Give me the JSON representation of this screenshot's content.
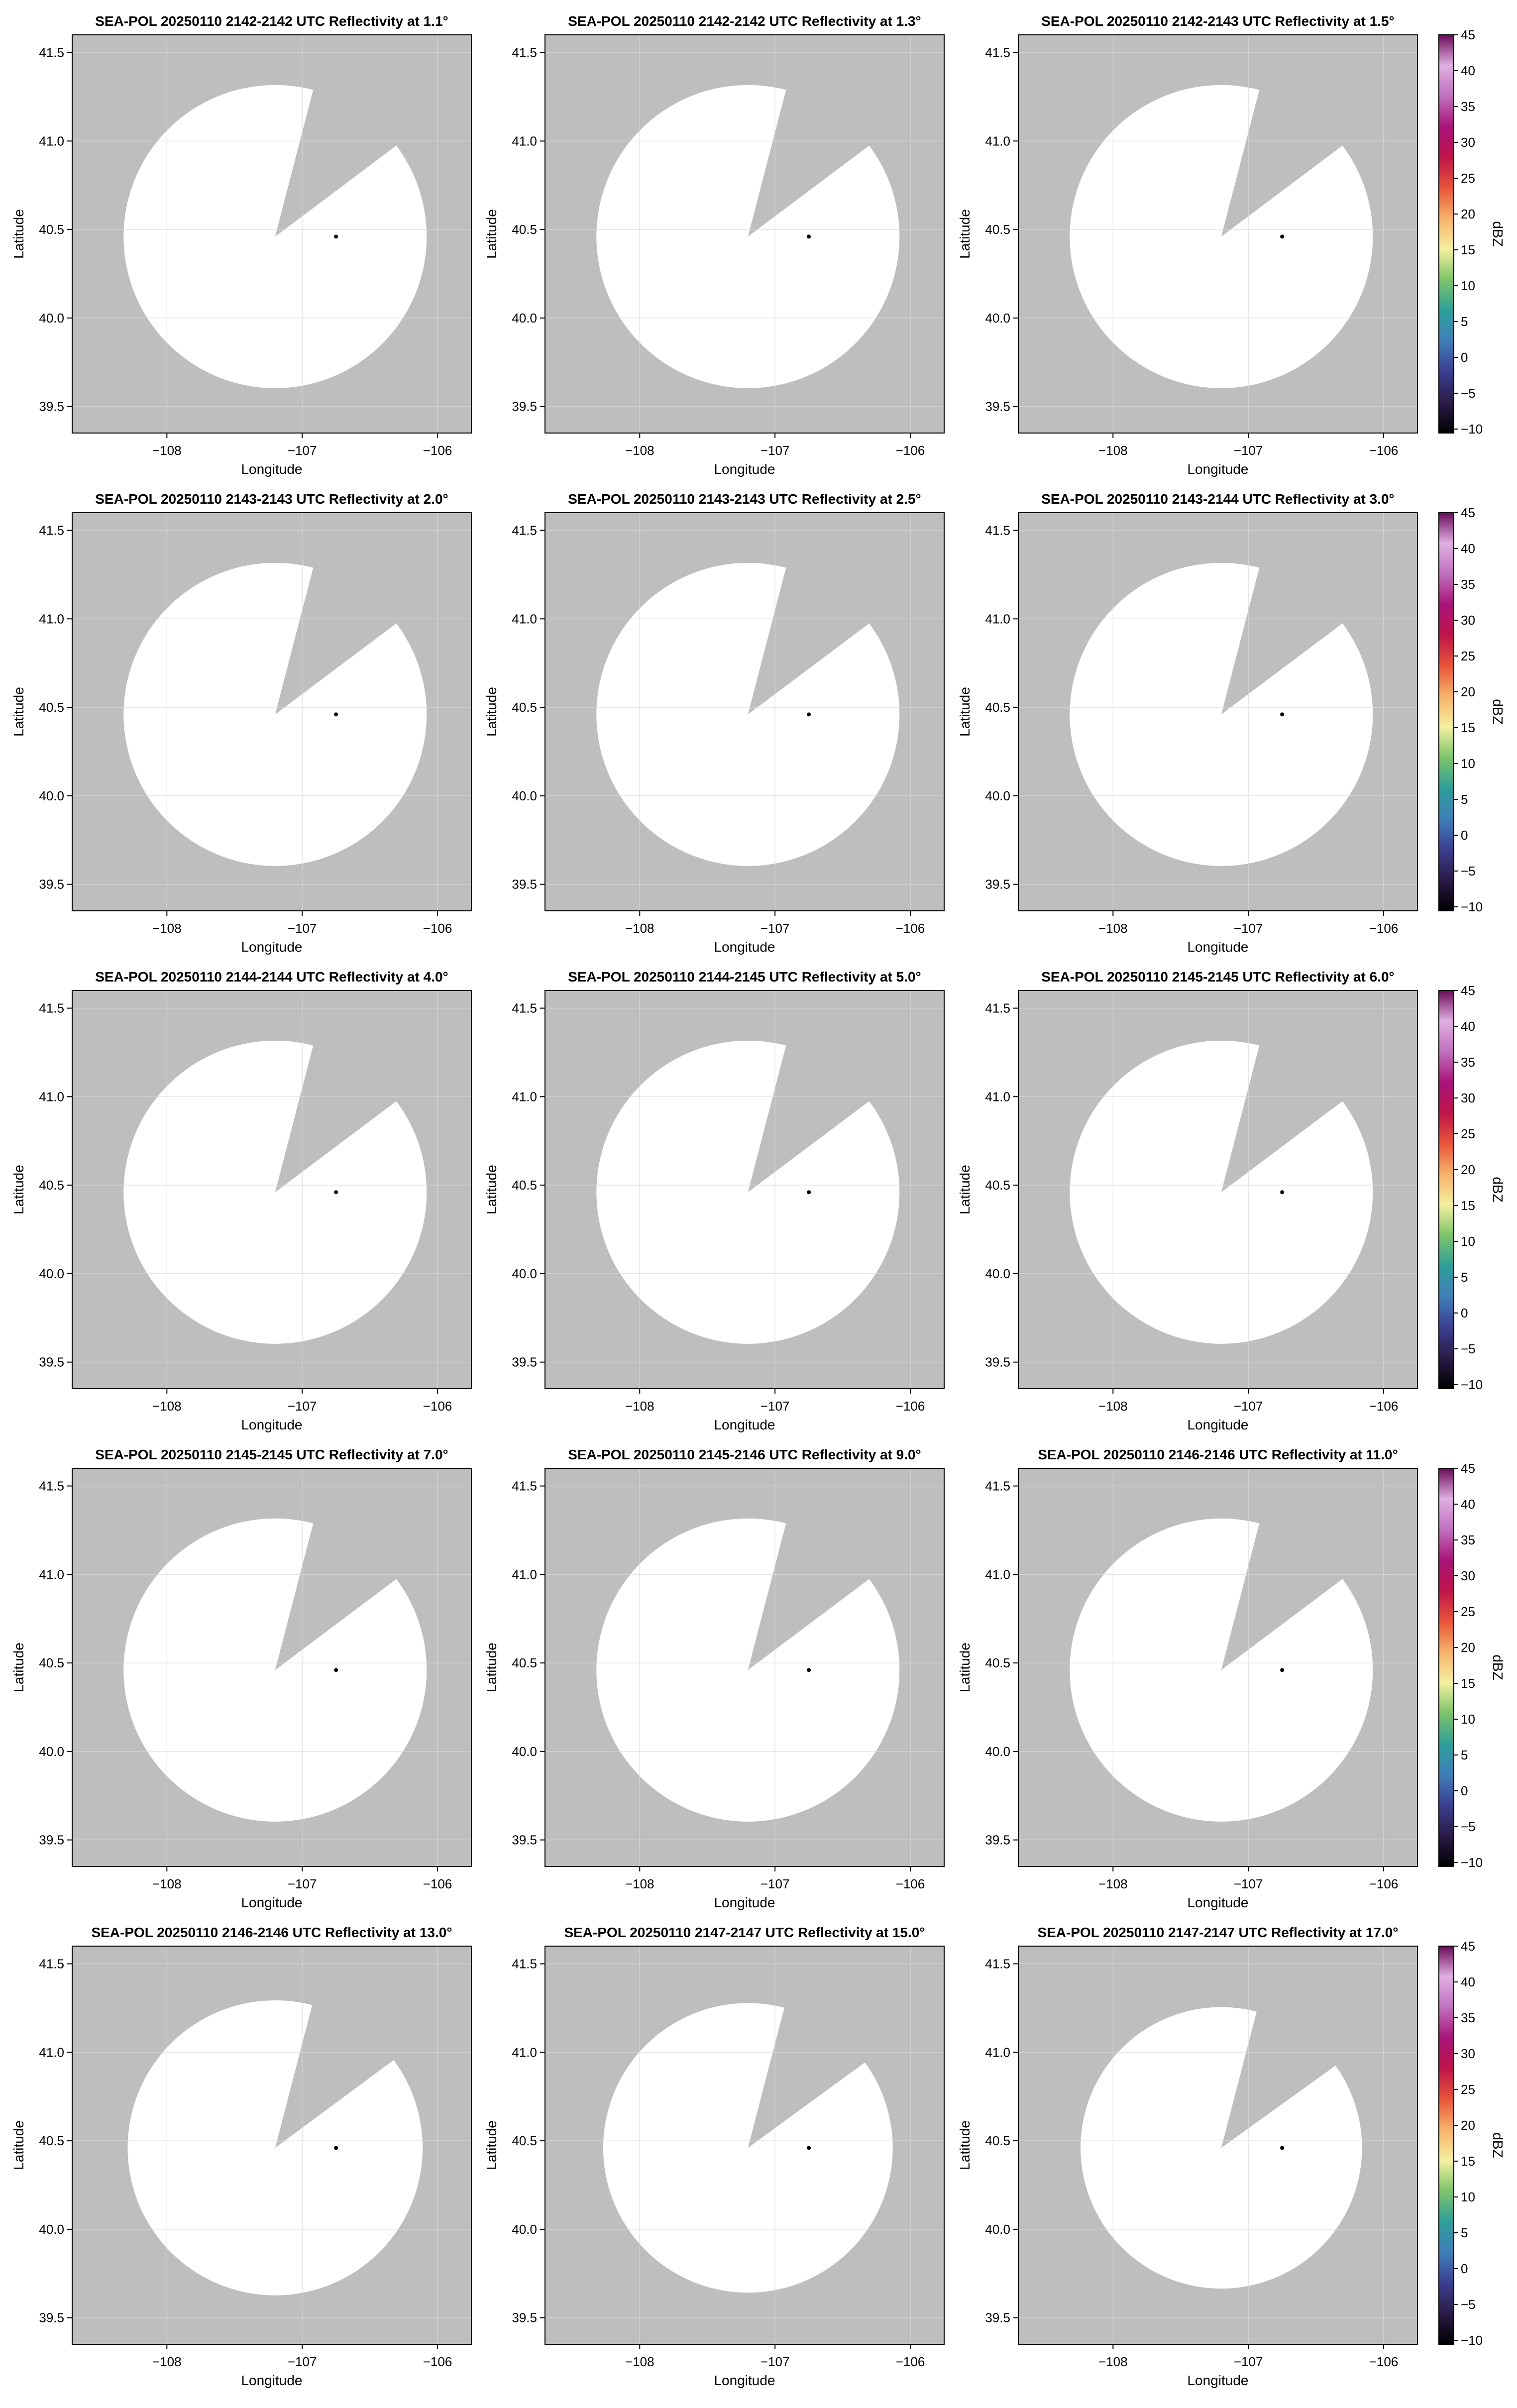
{
  "colors": {
    "no_data_background": "#bebebe",
    "coverage_fill": "#ffffff",
    "grid": "#d9d9d9",
    "radar_site_marker": "#000000",
    "axes_frame": "#000000"
  },
  "colormap": {
    "name": "reflectivity",
    "stops": [
      "#000000",
      "#2b1b48",
      "#3b3f8f",
      "#3f7fb8",
      "#2e9f9a",
      "#7cc46a",
      "#f4f0a0",
      "#f7b36a",
      "#e8553a",
      "#c0144a",
      "#a8147a",
      "#c070c0",
      "#e0b0e0",
      "#6a0a5a"
    ]
  },
  "chart_data": [
    {
      "type": "radar_ppi",
      "title": "SEA-POL 20250110 2142-2142 UTC Reflectivity at 1.1°",
      "xlabel": "Longitude",
      "ylabel": "Latitude",
      "xlim": [
        -108.7,
        -105.75
      ],
      "ylim": [
        39.35,
        41.6
      ],
      "xticks": [
        "−108",
        "−107",
        "−106"
      ],
      "yticks": [
        "39.5",
        "40.0",
        "40.5",
        "41.0",
        "41.5"
      ],
      "radar_site": {
        "lon": -106.75,
        "lat": 40.46
      },
      "coverage": {
        "center_lon": -107.2,
        "center_lat": 40.46,
        "radius_deg": 1.12,
        "blocked_sector": [
          {
            "lon": -106.84,
            "lat": 41.52
          },
          {
            "lon": -106.05,
            "lat": 41.12
          }
        ]
      },
      "colorbar": null,
      "grid": true
    },
    {
      "type": "radar_ppi",
      "title": "SEA-POL 20250110 2142-2142 UTC Reflectivity at 1.3°",
      "xlabel": "Longitude",
      "ylabel": "Latitude",
      "xlim": [
        -108.7,
        -105.75
      ],
      "ylim": [
        39.35,
        41.6
      ],
      "xticks": [
        "−108",
        "−107",
        "−106"
      ],
      "yticks": [
        "39.5",
        "40.0",
        "40.5",
        "41.0",
        "41.5"
      ],
      "radar_site": {
        "lon": -106.75,
        "lat": 40.46
      },
      "coverage": {
        "center_lon": -107.2,
        "center_lat": 40.46,
        "radius_deg": 1.12,
        "blocked_sector": [
          {
            "lon": -106.84,
            "lat": 41.52
          },
          {
            "lon": -106.05,
            "lat": 41.12
          }
        ]
      },
      "colorbar": null,
      "grid": true
    },
    {
      "type": "radar_ppi",
      "title": "SEA-POL 20250110 2142-2143 UTC Reflectivity at 1.5°",
      "xlabel": "Longitude",
      "ylabel": "Latitude",
      "xlim": [
        -108.7,
        -105.75
      ],
      "ylim": [
        39.35,
        41.6
      ],
      "xticks": [
        "−108",
        "−107",
        "−106"
      ],
      "yticks": [
        "39.5",
        "40.0",
        "40.5",
        "41.0",
        "41.5"
      ],
      "radar_site": {
        "lon": -106.75,
        "lat": 40.46
      },
      "coverage": {
        "center_lon": -107.2,
        "center_lat": 40.46,
        "radius_deg": 1.12,
        "blocked_sector": [
          {
            "lon": -106.84,
            "lat": 41.52
          },
          {
            "lon": -106.05,
            "lat": 41.12
          }
        ]
      },
      "colorbar": {
        "label": "dBZ",
        "range": [
          -10,
          45
        ],
        "ticks": [
          "45",
          "40",
          "35",
          "30",
          "25",
          "20",
          "15",
          "10",
          "5",
          "0",
          "−5",
          "−10"
        ]
      },
      "grid": true
    },
    {
      "type": "radar_ppi",
      "title": "SEA-POL 20250110 2143-2143 UTC Reflectivity at 2.0°",
      "xlabel": "Longitude",
      "ylabel": "Latitude",
      "xlim": [
        -108.7,
        -105.75
      ],
      "ylim": [
        39.35,
        41.6
      ],
      "xticks": [
        "−108",
        "−107",
        "−106"
      ],
      "yticks": [
        "39.5",
        "40.0",
        "40.5",
        "41.0",
        "41.5"
      ],
      "radar_site": {
        "lon": -106.75,
        "lat": 40.46
      },
      "coverage": {
        "center_lon": -107.2,
        "center_lat": 40.46,
        "radius_deg": 1.12,
        "blocked_sector": [
          {
            "lon": -106.84,
            "lat": 41.52
          },
          {
            "lon": -106.05,
            "lat": 41.12
          }
        ]
      },
      "colorbar": null,
      "grid": true
    },
    {
      "type": "radar_ppi",
      "title": "SEA-POL 20250110 2143-2143 UTC Reflectivity at 2.5°",
      "xlabel": "Longitude",
      "ylabel": "Latitude",
      "xlim": [
        -108.7,
        -105.75
      ],
      "ylim": [
        39.35,
        41.6
      ],
      "xticks": [
        "−108",
        "−107",
        "−106"
      ],
      "yticks": [
        "39.5",
        "40.0",
        "40.5",
        "41.0",
        "41.5"
      ],
      "radar_site": {
        "lon": -106.75,
        "lat": 40.46
      },
      "coverage": {
        "center_lon": -107.2,
        "center_lat": 40.46,
        "radius_deg": 1.12,
        "blocked_sector": [
          {
            "lon": -106.84,
            "lat": 41.52
          },
          {
            "lon": -106.05,
            "lat": 41.12
          }
        ]
      },
      "colorbar": null,
      "grid": true
    },
    {
      "type": "radar_ppi",
      "title": "SEA-POL 20250110 2143-2144 UTC Reflectivity at 3.0°",
      "xlabel": "Longitude",
      "ylabel": "Latitude",
      "xlim": [
        -108.7,
        -105.75
      ],
      "ylim": [
        39.35,
        41.6
      ],
      "xticks": [
        "−108",
        "−107",
        "−106"
      ],
      "yticks": [
        "39.5",
        "40.0",
        "40.5",
        "41.0",
        "41.5"
      ],
      "radar_site": {
        "lon": -106.75,
        "lat": 40.46
      },
      "coverage": {
        "center_lon": -107.2,
        "center_lat": 40.46,
        "radius_deg": 1.12,
        "blocked_sector": [
          {
            "lon": -106.84,
            "lat": 41.52
          },
          {
            "lon": -106.05,
            "lat": 41.12
          }
        ]
      },
      "colorbar": {
        "label": "dBZ",
        "range": [
          -10,
          45
        ],
        "ticks": [
          "45",
          "40",
          "35",
          "30",
          "25",
          "20",
          "15",
          "10",
          "5",
          "0",
          "−5",
          "−10"
        ]
      },
      "grid": true
    },
    {
      "type": "radar_ppi",
      "title": "SEA-POL 20250110 2144-2144 UTC Reflectivity at 4.0°",
      "xlabel": "Longitude",
      "ylabel": "Latitude",
      "xlim": [
        -108.7,
        -105.75
      ],
      "ylim": [
        39.35,
        41.6
      ],
      "xticks": [
        "−108",
        "−107",
        "−106"
      ],
      "yticks": [
        "39.5",
        "40.0",
        "40.5",
        "41.0",
        "41.5"
      ],
      "radar_site": {
        "lon": -106.75,
        "lat": 40.46
      },
      "coverage": {
        "center_lon": -107.2,
        "center_lat": 40.46,
        "radius_deg": 1.12,
        "blocked_sector": [
          {
            "lon": -106.84,
            "lat": 41.52
          },
          {
            "lon": -106.05,
            "lat": 41.12
          }
        ]
      },
      "colorbar": null,
      "grid": true
    },
    {
      "type": "radar_ppi",
      "title": "SEA-POL 20250110 2144-2145 UTC Reflectivity at 5.0°",
      "xlabel": "Longitude",
      "ylabel": "Latitude",
      "xlim": [
        -108.7,
        -105.75
      ],
      "ylim": [
        39.35,
        41.6
      ],
      "xticks": [
        "−108",
        "−107",
        "−106"
      ],
      "yticks": [
        "39.5",
        "40.0",
        "40.5",
        "41.0",
        "41.5"
      ],
      "radar_site": {
        "lon": -106.75,
        "lat": 40.46
      },
      "coverage": {
        "center_lon": -107.2,
        "center_lat": 40.46,
        "radius_deg": 1.12,
        "blocked_sector": [
          {
            "lon": -106.84,
            "lat": 41.52
          },
          {
            "lon": -106.05,
            "lat": 41.12
          }
        ]
      },
      "colorbar": null,
      "grid": true
    },
    {
      "type": "radar_ppi",
      "title": "SEA-POL 20250110 2145-2145 UTC Reflectivity at 6.0°",
      "xlabel": "Longitude",
      "ylabel": "Latitude",
      "xlim": [
        -108.7,
        -105.75
      ],
      "ylim": [
        39.35,
        41.6
      ],
      "xticks": [
        "−108",
        "−107",
        "−106"
      ],
      "yticks": [
        "39.5",
        "40.0",
        "40.5",
        "41.0",
        "41.5"
      ],
      "radar_site": {
        "lon": -106.75,
        "lat": 40.46
      },
      "coverage": {
        "center_lon": -107.2,
        "center_lat": 40.46,
        "radius_deg": 1.12,
        "blocked_sector": [
          {
            "lon": -106.84,
            "lat": 41.52
          },
          {
            "lon": -106.05,
            "lat": 41.12
          }
        ]
      },
      "colorbar": {
        "label": "dBZ",
        "range": [
          -10,
          45
        ],
        "ticks": [
          "45",
          "40",
          "35",
          "30",
          "25",
          "20",
          "15",
          "10",
          "5",
          "0",
          "−5",
          "−10"
        ]
      },
      "grid": true
    },
    {
      "type": "radar_ppi",
      "title": "SEA-POL 20250110 2145-2145 UTC Reflectivity at 7.0°",
      "xlabel": "Longitude",
      "ylabel": "Latitude",
      "xlim": [
        -108.7,
        -105.75
      ],
      "ylim": [
        39.35,
        41.6
      ],
      "xticks": [
        "−108",
        "−107",
        "−106"
      ],
      "yticks": [
        "39.5",
        "40.0",
        "40.5",
        "41.0",
        "41.5"
      ],
      "radar_site": {
        "lon": -106.75,
        "lat": 40.46
      },
      "coverage": {
        "center_lon": -107.2,
        "center_lat": 40.46,
        "radius_deg": 1.12,
        "blocked_sector": [
          {
            "lon": -106.84,
            "lat": 41.52
          },
          {
            "lon": -106.05,
            "lat": 41.12
          }
        ]
      },
      "colorbar": null,
      "grid": true
    },
    {
      "type": "radar_ppi",
      "title": "SEA-POL 20250110 2145-2146 UTC Reflectivity at 9.0°",
      "xlabel": "Longitude",
      "ylabel": "Latitude",
      "xlim": [
        -108.7,
        -105.75
      ],
      "ylim": [
        39.35,
        41.6
      ],
      "xticks": [
        "−108",
        "−107",
        "−106"
      ],
      "yticks": [
        "39.5",
        "40.0",
        "40.5",
        "41.0",
        "41.5"
      ],
      "radar_site": {
        "lon": -106.75,
        "lat": 40.46
      },
      "coverage": {
        "center_lon": -107.2,
        "center_lat": 40.46,
        "radius_deg": 1.12,
        "blocked_sector": [
          {
            "lon": -106.84,
            "lat": 41.52
          },
          {
            "lon": -106.05,
            "lat": 41.12
          }
        ]
      },
      "colorbar": null,
      "grid": true
    },
    {
      "type": "radar_ppi",
      "title": "SEA-POL 20250110 2146-2146 UTC Reflectivity at 11.0°",
      "xlabel": "Longitude",
      "ylabel": "Latitude",
      "xlim": [
        -108.7,
        -105.75
      ],
      "ylim": [
        39.35,
        41.6
      ],
      "xticks": [
        "−108",
        "−107",
        "−106"
      ],
      "yticks": [
        "39.5",
        "40.0",
        "40.5",
        "41.0",
        "41.5"
      ],
      "radar_site": {
        "lon": -106.75,
        "lat": 40.46
      },
      "coverage": {
        "center_lon": -107.2,
        "center_lat": 40.46,
        "radius_deg": 1.12,
        "blocked_sector": [
          {
            "lon": -106.84,
            "lat": 41.52
          },
          {
            "lon": -106.05,
            "lat": 41.12
          }
        ]
      },
      "colorbar": {
        "label": "dBZ",
        "range": [
          -10,
          45
        ],
        "ticks": [
          "45",
          "40",
          "35",
          "30",
          "25",
          "20",
          "15",
          "10",
          "5",
          "0",
          "−5",
          "−10"
        ]
      },
      "grid": true
    },
    {
      "type": "radar_ppi",
      "title": "SEA-POL 20250110 2146-2146 UTC Reflectivity at 13.0°",
      "xlabel": "Longitude",
      "ylabel": "Latitude",
      "xlim": [
        -108.7,
        -105.75
      ],
      "ylim": [
        39.35,
        41.6
      ],
      "xticks": [
        "−108",
        "−107",
        "−106"
      ],
      "yticks": [
        "39.5",
        "40.0",
        "40.5",
        "41.0",
        "41.5"
      ],
      "radar_site": {
        "lon": -106.75,
        "lat": 40.46
      },
      "coverage": {
        "center_lon": -107.2,
        "center_lat": 40.46,
        "radius_deg": 1.09,
        "blocked_sector": [
          {
            "lon": -106.84,
            "lat": 41.52
          },
          {
            "lon": -106.07,
            "lat": 41.1
          }
        ]
      },
      "colorbar": null,
      "grid": true
    },
    {
      "type": "radar_ppi",
      "title": "SEA-POL 20250110 2147-2147 UTC Reflectivity at 15.0°",
      "xlabel": "Longitude",
      "ylabel": "Latitude",
      "xlim": [
        -108.7,
        -105.75
      ],
      "ylim": [
        39.35,
        41.6
      ],
      "xticks": [
        "−108",
        "−107",
        "−106"
      ],
      "yticks": [
        "39.5",
        "40.0",
        "40.5",
        "41.0",
        "41.5"
      ],
      "radar_site": {
        "lon": -106.75,
        "lat": 40.46
      },
      "coverage": {
        "center_lon": -107.2,
        "center_lat": 40.46,
        "radius_deg": 1.07,
        "blocked_sector": [
          {
            "lon": -106.84,
            "lat": 41.52
          },
          {
            "lon": -106.09,
            "lat": 41.08
          }
        ]
      },
      "colorbar": null,
      "grid": true
    },
    {
      "type": "radar_ppi",
      "title": "SEA-POL 20250110 2147-2147 UTC Reflectivity at 17.0°",
      "xlabel": "Longitude",
      "ylabel": "Latitude",
      "xlim": [
        -108.7,
        -105.75
      ],
      "ylim": [
        39.35,
        41.6
      ],
      "xticks": [
        "−108",
        "−107",
        "−106"
      ],
      "yticks": [
        "39.5",
        "40.0",
        "40.5",
        "41.0",
        "41.5"
      ],
      "radar_site": {
        "lon": -106.75,
        "lat": 40.46
      },
      "coverage": {
        "center_lon": -107.2,
        "center_lat": 40.46,
        "radius_deg": 1.04,
        "blocked_sector": [
          {
            "lon": -106.84,
            "lat": 41.52
          },
          {
            "lon": -106.11,
            "lat": 41.06
          }
        ]
      },
      "colorbar": {
        "label": "dBZ",
        "range": [
          -10,
          45
        ],
        "ticks": [
          "45",
          "40",
          "35",
          "30",
          "25",
          "20",
          "15",
          "10",
          "5",
          "0",
          "−5",
          "−10"
        ]
      },
      "grid": true
    }
  ]
}
